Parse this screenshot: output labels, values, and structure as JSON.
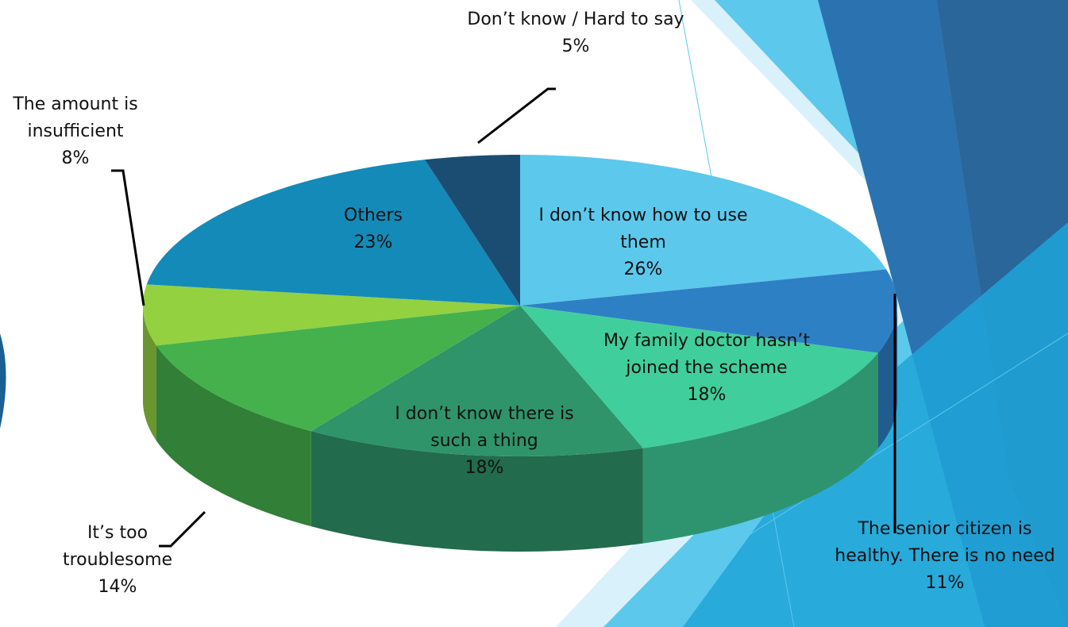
{
  "chart_data": {
    "type": "pie",
    "categories": [
      "I don’t know how to use them",
      "The senior citizen is healthy. There is no need",
      "My family doctor hasn’t joined the scheme",
      "I don’t know there is such a thing",
      "It’s too troublesome",
      "The amount is insufficient",
      "Others",
      "Don’t know / Hard to say"
    ],
    "values": [
      26,
      11,
      18,
      18,
      14,
      8,
      23,
      5
    ],
    "value_labels": [
      "26%",
      "11%",
      "18%",
      "18%",
      "14%",
      "8%",
      "23%",
      "5%"
    ],
    "colors": [
      "#5cc8ec",
      "#2e80c5",
      "#40ce9c",
      "#2f9469",
      "#45b14d",
      "#93d141",
      "#148ab8",
      "#1b4d72"
    ]
  }
}
